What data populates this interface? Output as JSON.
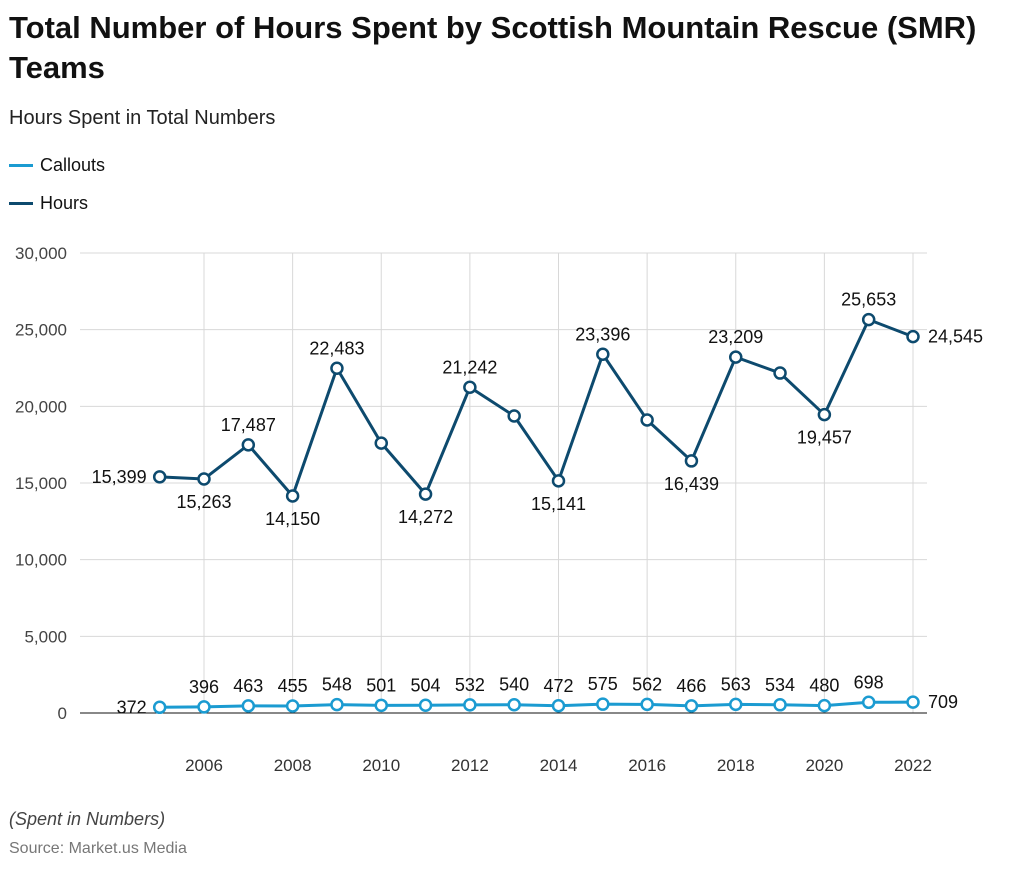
{
  "title": "Total Number of Hours Spent by Scottish Mountain Rescue (SMR) Teams",
  "subtitle": "Hours Spent in Total Numbers",
  "note": "(Spent in Numbers)",
  "source": "Source: Market.us Media",
  "chart_data": {
    "type": "line",
    "title": "Total Number of Hours Spent by Scottish Mountain Rescue (SMR) Teams",
    "subtitle": "Hours Spent in Total Numbers",
    "x": [
      2005,
      2006,
      2007,
      2008,
      2009,
      2010,
      2011,
      2012,
      2013,
      2014,
      2015,
      2016,
      2017,
      2018,
      2019,
      2020,
      2021,
      2022
    ],
    "x_ticks": [
      "2006",
      "2008",
      "2010",
      "2012",
      "2014",
      "2016",
      "2018",
      "2020",
      "2022"
    ],
    "y_ticks": [
      "0",
      "5,000",
      "10,000",
      "15,000",
      "20,000",
      "25,000",
      "30,000"
    ],
    "ylim": [
      0,
      30000
    ],
    "grid": true,
    "legend_position": "top-left",
    "series": [
      {
        "name": "Callouts",
        "color": "#1b9bd1",
        "values": [
          372,
          396,
          463,
          455,
          548,
          501,
          504,
          532,
          540,
          472,
          575,
          562,
          466,
          563,
          534,
          480,
          698,
          709
        ],
        "labels": [
          "372",
          "396",
          "463",
          "455",
          "548",
          "501",
          "504",
          "532",
          "540",
          "472",
          "575",
          "562",
          "466",
          "563",
          "534",
          "480",
          "698",
          "709"
        ]
      },
      {
        "name": "Hours",
        "color": "#0d4a6e",
        "values": [
          15399,
          15263,
          17487,
          14150,
          22483,
          17600,
          14272,
          21242,
          19370,
          15141,
          23396,
          19110,
          16439,
          23209,
          22170,
          19457,
          25653,
          24545
        ],
        "labels": [
          "15,399",
          "15,263",
          "17,487",
          "14,150",
          "22,483",
          "",
          "14,272",
          "21,242",
          "",
          "15,141",
          "23,396",
          "",
          "16,439",
          "23,209",
          "",
          "19,457",
          "25,653",
          "24,545"
        ]
      }
    ]
  }
}
